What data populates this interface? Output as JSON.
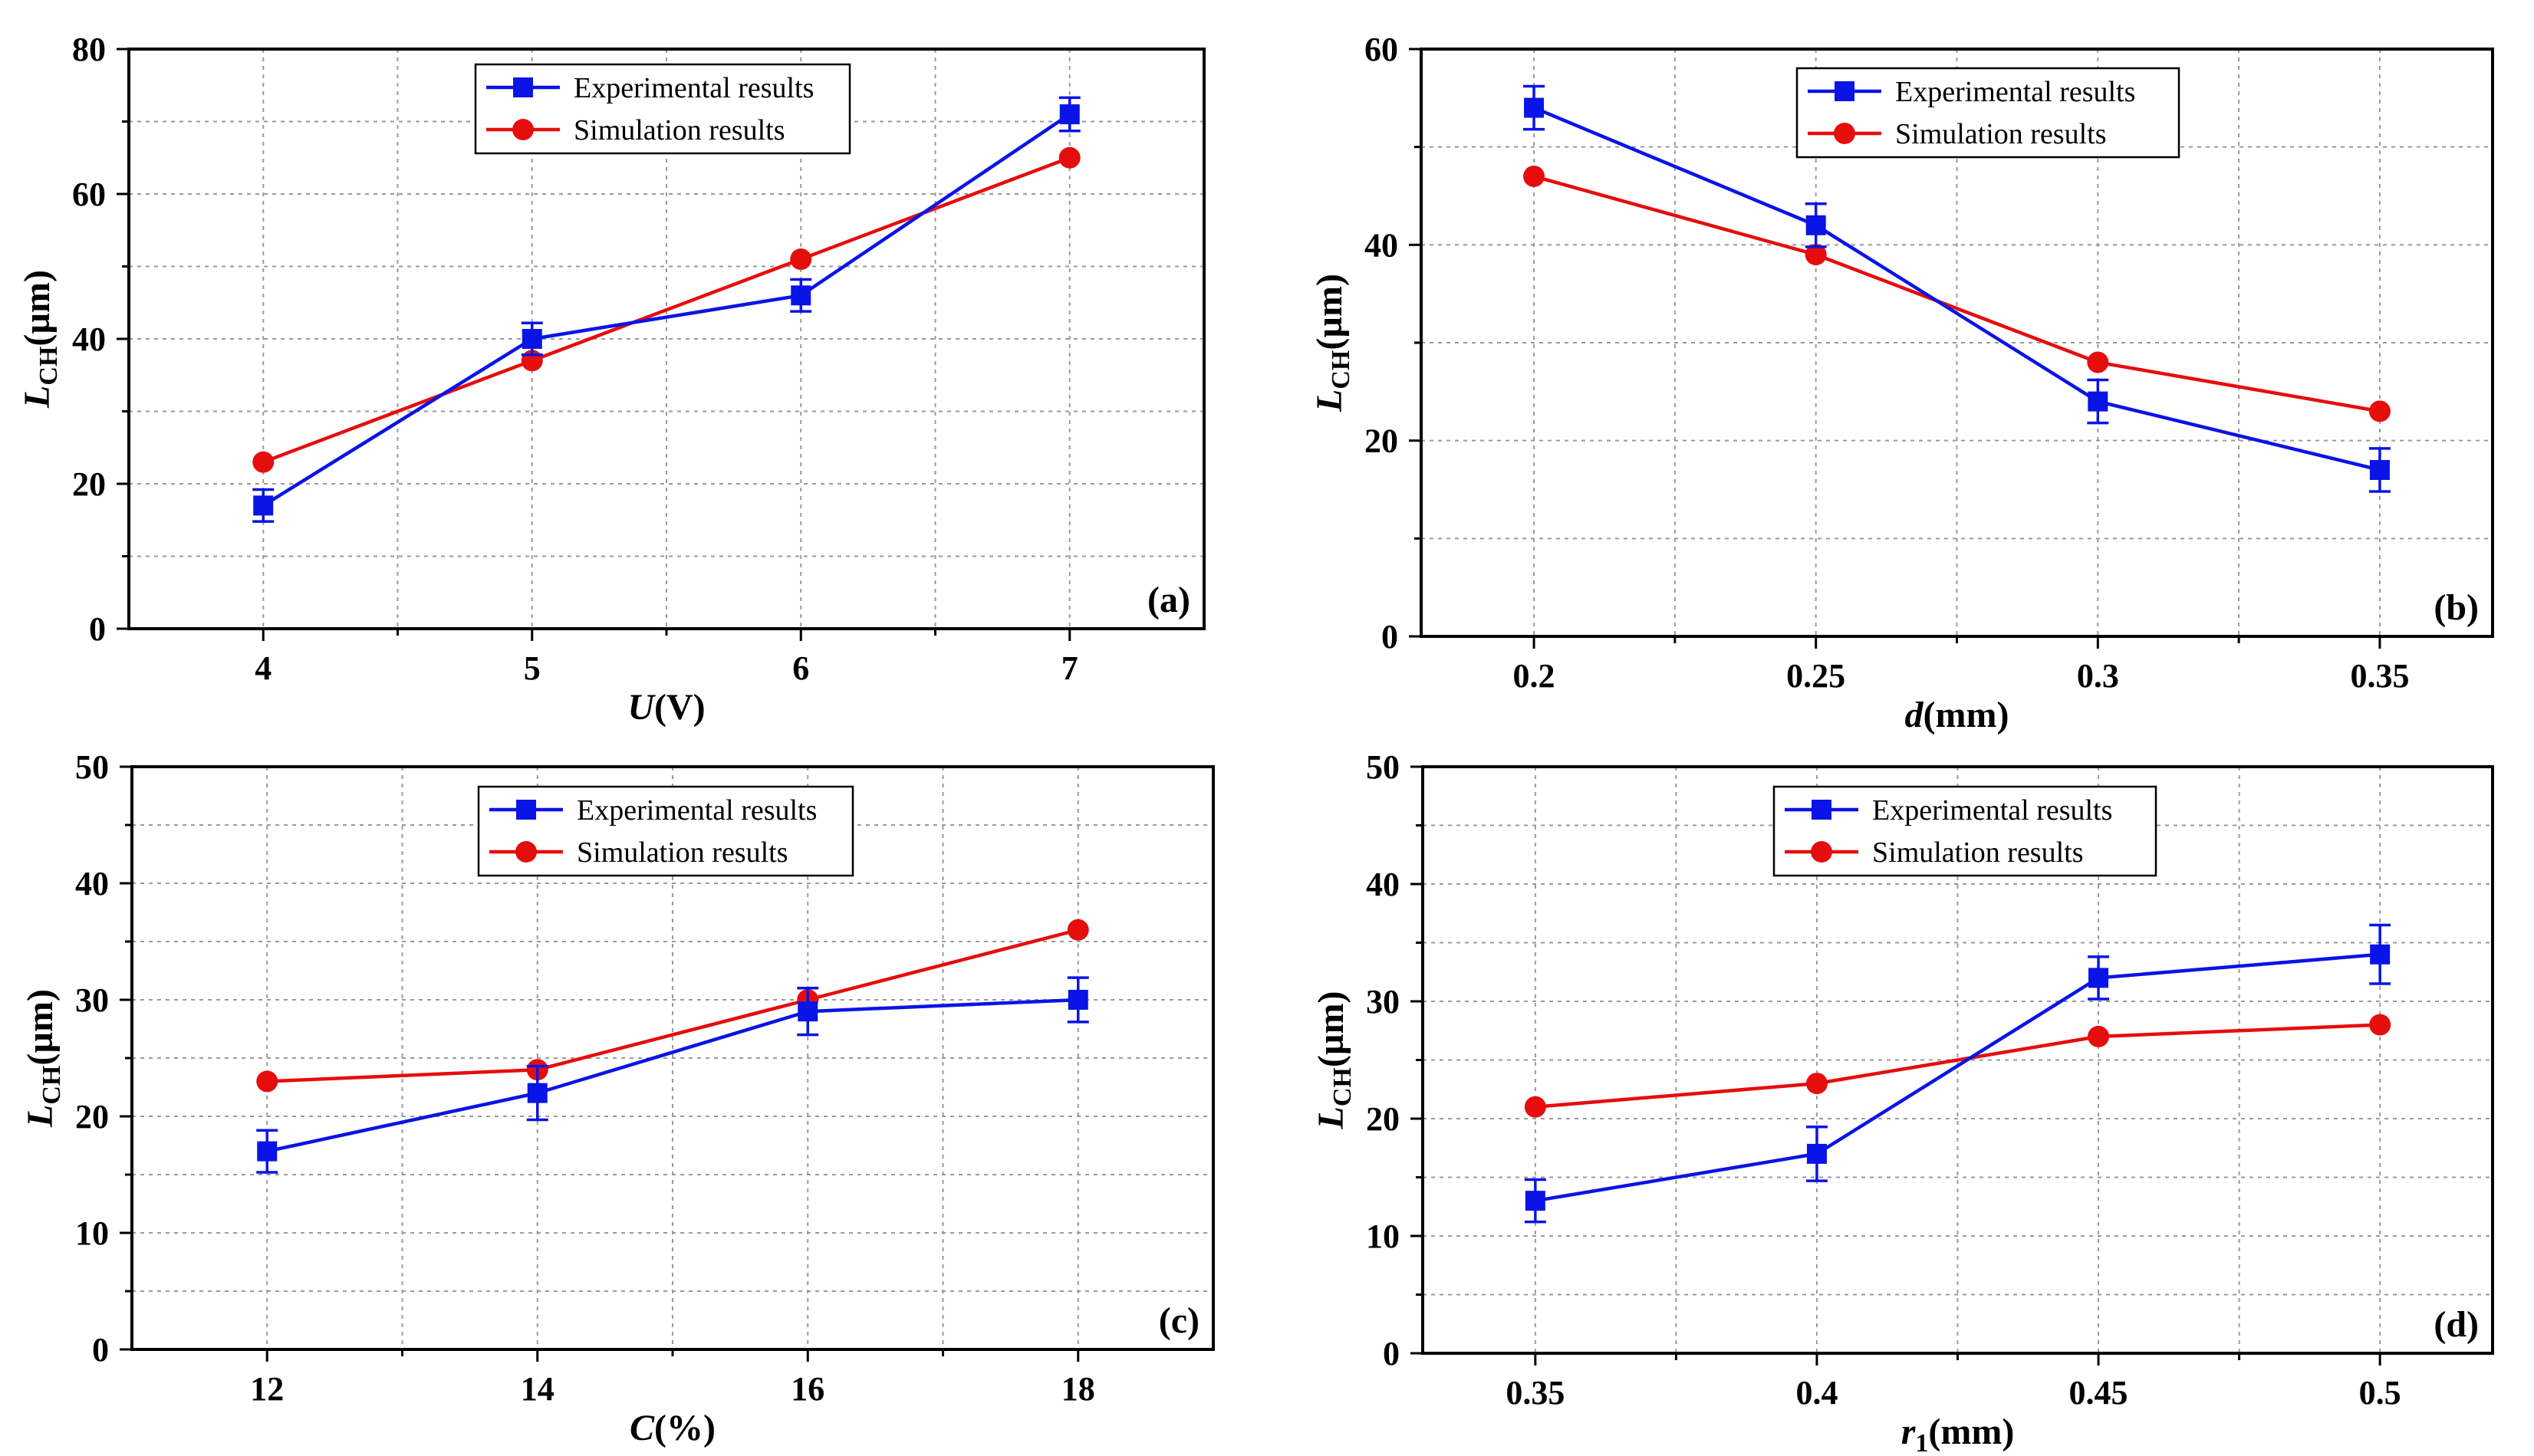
{
  "colors": {
    "experimental": "#0a14e6",
    "simulation": "#e60d0d",
    "grid": "#9a9a9a",
    "axis": "#000000"
  },
  "chart_data": [
    {
      "type": "line",
      "panel_label": "(a)",
      "xlabel_main": "U",
      "xlabel_unit": "(V)",
      "ylabel_main": "L",
      "ylabel_sub": "CH",
      "ylabel_unit": "(µm)",
      "x": [
        4,
        5,
        6,
        7
      ],
      "x_tick_labels": [
        "4",
        "5",
        "6",
        "7"
      ],
      "xlim": [
        3.5,
        7.5
      ],
      "ylim": [
        0,
        80
      ],
      "y_ticks": [
        0,
        20,
        40,
        60,
        80
      ],
      "y_tick_labels": [
        "0",
        "20",
        "40",
        "60",
        "80"
      ],
      "grid": true,
      "legend_position": "top-center",
      "series": [
        {
          "name": "Experimental results",
          "marker": "square",
          "values": [
            17,
            40,
            46,
            71
          ],
          "errors": [
            2.2,
            2.2,
            2.2,
            2.3
          ]
        },
        {
          "name": "Simulation results",
          "marker": "circle",
          "values": [
            23,
            37,
            51,
            65
          ]
        }
      ]
    },
    {
      "type": "line",
      "panel_label": "(b)",
      "xlabel_main": "d",
      "xlabel_unit": "(mm)",
      "ylabel_main": "L",
      "ylabel_sub": "CH",
      "ylabel_unit": "(µm)",
      "x": [
        0.2,
        0.25,
        0.3,
        0.35
      ],
      "x_tick_labels": [
        "0.2",
        "0.25",
        "0.3",
        "0.35"
      ],
      "xlim": [
        0.18,
        0.37
      ],
      "ylim": [
        0,
        60
      ],
      "y_ticks": [
        0,
        20,
        40,
        60
      ],
      "y_tick_labels": [
        "0",
        "20",
        "40",
        "60"
      ],
      "grid": true,
      "legend_position": "top-center",
      "series": [
        {
          "name": "Experimental results",
          "marker": "square",
          "values": [
            54,
            42,
            24,
            17
          ],
          "errors": [
            2.2,
            2.2,
            2.2,
            2.2
          ]
        },
        {
          "name": "Simulation results",
          "marker": "circle",
          "values": [
            47,
            39,
            28,
            23
          ]
        }
      ]
    },
    {
      "type": "line",
      "panel_label": "(c)",
      "xlabel_main": "C",
      "xlabel_unit": "(%)",
      "ylabel_main": "L",
      "ylabel_sub": "CH",
      "ylabel_unit": "(µm)",
      "x": [
        12,
        14,
        16,
        18
      ],
      "x_tick_labels": [
        "12",
        "14",
        "16",
        "18"
      ],
      "xlim": [
        11,
        19
      ],
      "ylim": [
        0,
        50
      ],
      "y_ticks": [
        0,
        10,
        20,
        30,
        40,
        50
      ],
      "y_tick_labels": [
        "0",
        "10",
        "20",
        "30",
        "40",
        "50"
      ],
      "grid": true,
      "legend_position": "top-center",
      "series": [
        {
          "name": "Experimental results",
          "marker": "square",
          "values": [
            17,
            22,
            29,
            30
          ],
          "errors": [
            1.8,
            2.3,
            2.0,
            1.9
          ]
        },
        {
          "name": "Simulation results",
          "marker": "circle",
          "values": [
            23,
            24,
            30,
            36
          ]
        }
      ]
    },
    {
      "type": "line",
      "panel_label": "(d)",
      "xlabel_main": "r",
      "xlabel_sub": "1",
      "xlabel_unit": "(mm)",
      "ylabel_main": "L",
      "ylabel_sub": "CH",
      "ylabel_unit": "(µm)",
      "x": [
        0.35,
        0.4,
        0.45,
        0.5
      ],
      "x_tick_labels": [
        "0.35",
        "0.4",
        "0.45",
        "0.5"
      ],
      "xlim": [
        0.33,
        0.52
      ],
      "ylim": [
        0,
        50
      ],
      "y_ticks": [
        0,
        10,
        20,
        30,
        40,
        50
      ],
      "y_tick_labels": [
        "0",
        "10",
        "20",
        "30",
        "40",
        "50"
      ],
      "grid": true,
      "legend_position": "top-center",
      "series": [
        {
          "name": "Experimental results",
          "marker": "square",
          "values": [
            13,
            17,
            32,
            34
          ],
          "errors": [
            1.8,
            2.3,
            1.8,
            2.5
          ]
        },
        {
          "name": "Simulation results",
          "marker": "circle",
          "values": [
            21,
            23,
            27,
            28
          ]
        }
      ]
    }
  ]
}
